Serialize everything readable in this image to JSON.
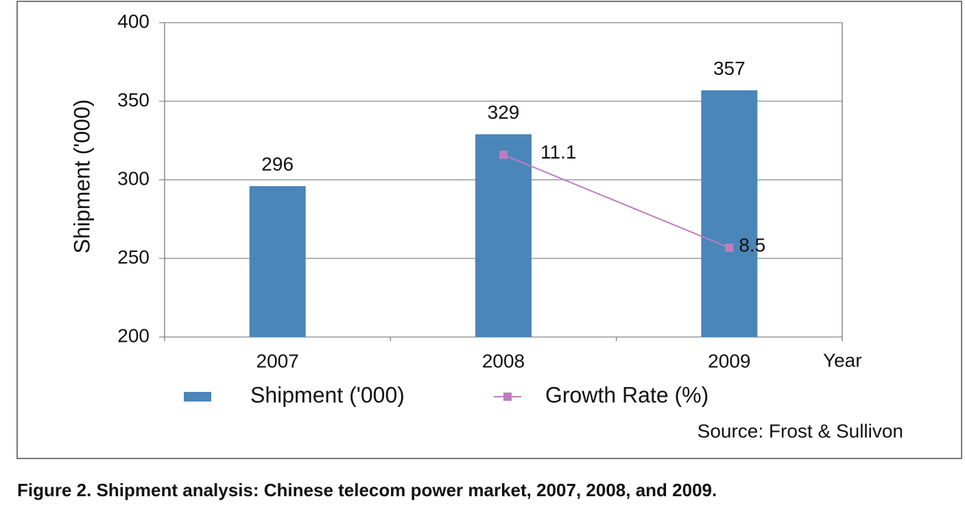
{
  "chart_data": {
    "type": "bar",
    "y_label": "Shipment ('000)",
    "x_label": "Year",
    "categories": [
      "2007",
      "2008",
      "2009"
    ],
    "series": [
      {
        "name": "Shipment ('000)",
        "type": "bar",
        "color": "#4a86b8",
        "values": [
          296,
          329,
          357
        ]
      },
      {
        "name": "Growth Rate (%)",
        "type": "line",
        "axis": "y2",
        "color": "#c07cc0",
        "values": [
          null,
          11.1,
          8.5
        ]
      }
    ],
    "ylim": [
      200,
      400
    ],
    "yticks": [
      200,
      250,
      300,
      350,
      400
    ],
    "y2lim": [
      6,
      14.8
    ],
    "grid": true,
    "legend": "bottom",
    "source": "Source: Frost & Sullivon",
    "caption": "Figure 2. Shipment analysis: Chinese telecom power market, 2007, 2008, and 2009."
  }
}
